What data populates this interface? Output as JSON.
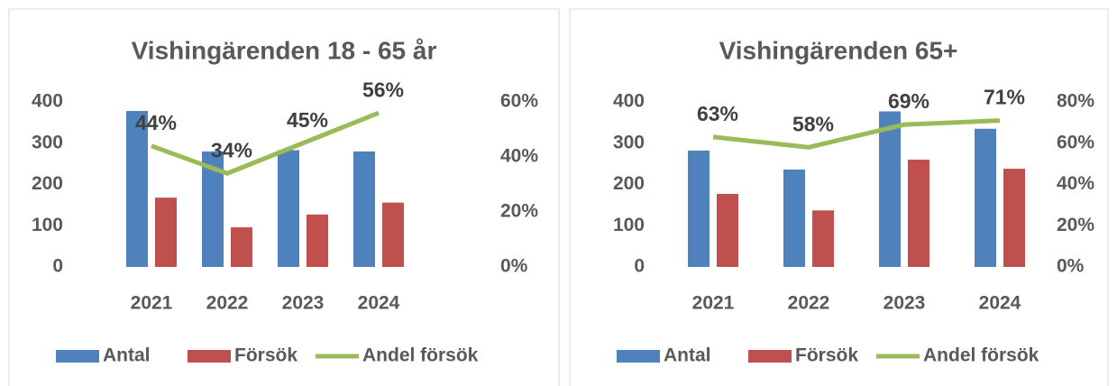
{
  "chart_data": [
    {
      "type": "combo",
      "title": "Vishingärenden 18 - 65 år",
      "categories": [
        "2021",
        "2022",
        "2023",
        "2024"
      ],
      "series": [
        {
          "name": "Antal",
          "type": "bar",
          "color": "#4f81bd",
          "values": [
            378,
            280,
            283,
            280
          ]
        },
        {
          "name": "Försök",
          "type": "bar",
          "color": "#c0504d",
          "values": [
            168,
            96,
            127,
            156
          ]
        },
        {
          "name": "Andel försök",
          "type": "line",
          "axis": "y2",
          "color": "#9bbb59",
          "values": [
            44,
            34,
            45,
            56
          ],
          "value_labels": [
            "44%",
            "34%",
            "45%",
            "56%"
          ]
        }
      ],
      "ylim": [
        0,
        400
      ],
      "yticks": [
        0,
        100,
        200,
        300,
        400
      ],
      "y2lim": [
        0,
        60
      ],
      "y2ticks": [
        {
          "value": 0,
          "label": "0%"
        },
        {
          "value": 20,
          "label": "20%"
        },
        {
          "value": 40,
          "label": "40%"
        },
        {
          "value": 60,
          "label": "60%"
        }
      ],
      "legend": "bottom"
    },
    {
      "type": "combo",
      "title": "Vishingärenden 65+",
      "categories": [
        "2021",
        "2022",
        "2023",
        "2024"
      ],
      "series": [
        {
          "name": "Antal",
          "type": "bar",
          "color": "#4f81bd",
          "values": [
            282,
            236,
            377,
            335
          ]
        },
        {
          "name": "Försök",
          "type": "bar",
          "color": "#c0504d",
          "values": [
            177,
            137,
            260,
            238
          ]
        },
        {
          "name": "Andel försök",
          "type": "line",
          "axis": "y2",
          "color": "#9bbb59",
          "values": [
            63,
            58,
            69,
            71
          ],
          "value_labels": [
            "63%",
            "58%",
            "69%",
            "71%"
          ]
        }
      ],
      "ylim": [
        0,
        400
      ],
      "yticks": [
        0,
        100,
        200,
        300,
        400
      ],
      "y2lim": [
        0,
        80
      ],
      "y2ticks": [
        {
          "value": 0,
          "label": "0%"
        },
        {
          "value": 20,
          "label": "20%"
        },
        {
          "value": 40,
          "label": "40%"
        },
        {
          "value": 60,
          "label": "60%"
        },
        {
          "value": 80,
          "label": "80%"
        }
      ],
      "legend": "bottom"
    }
  ]
}
